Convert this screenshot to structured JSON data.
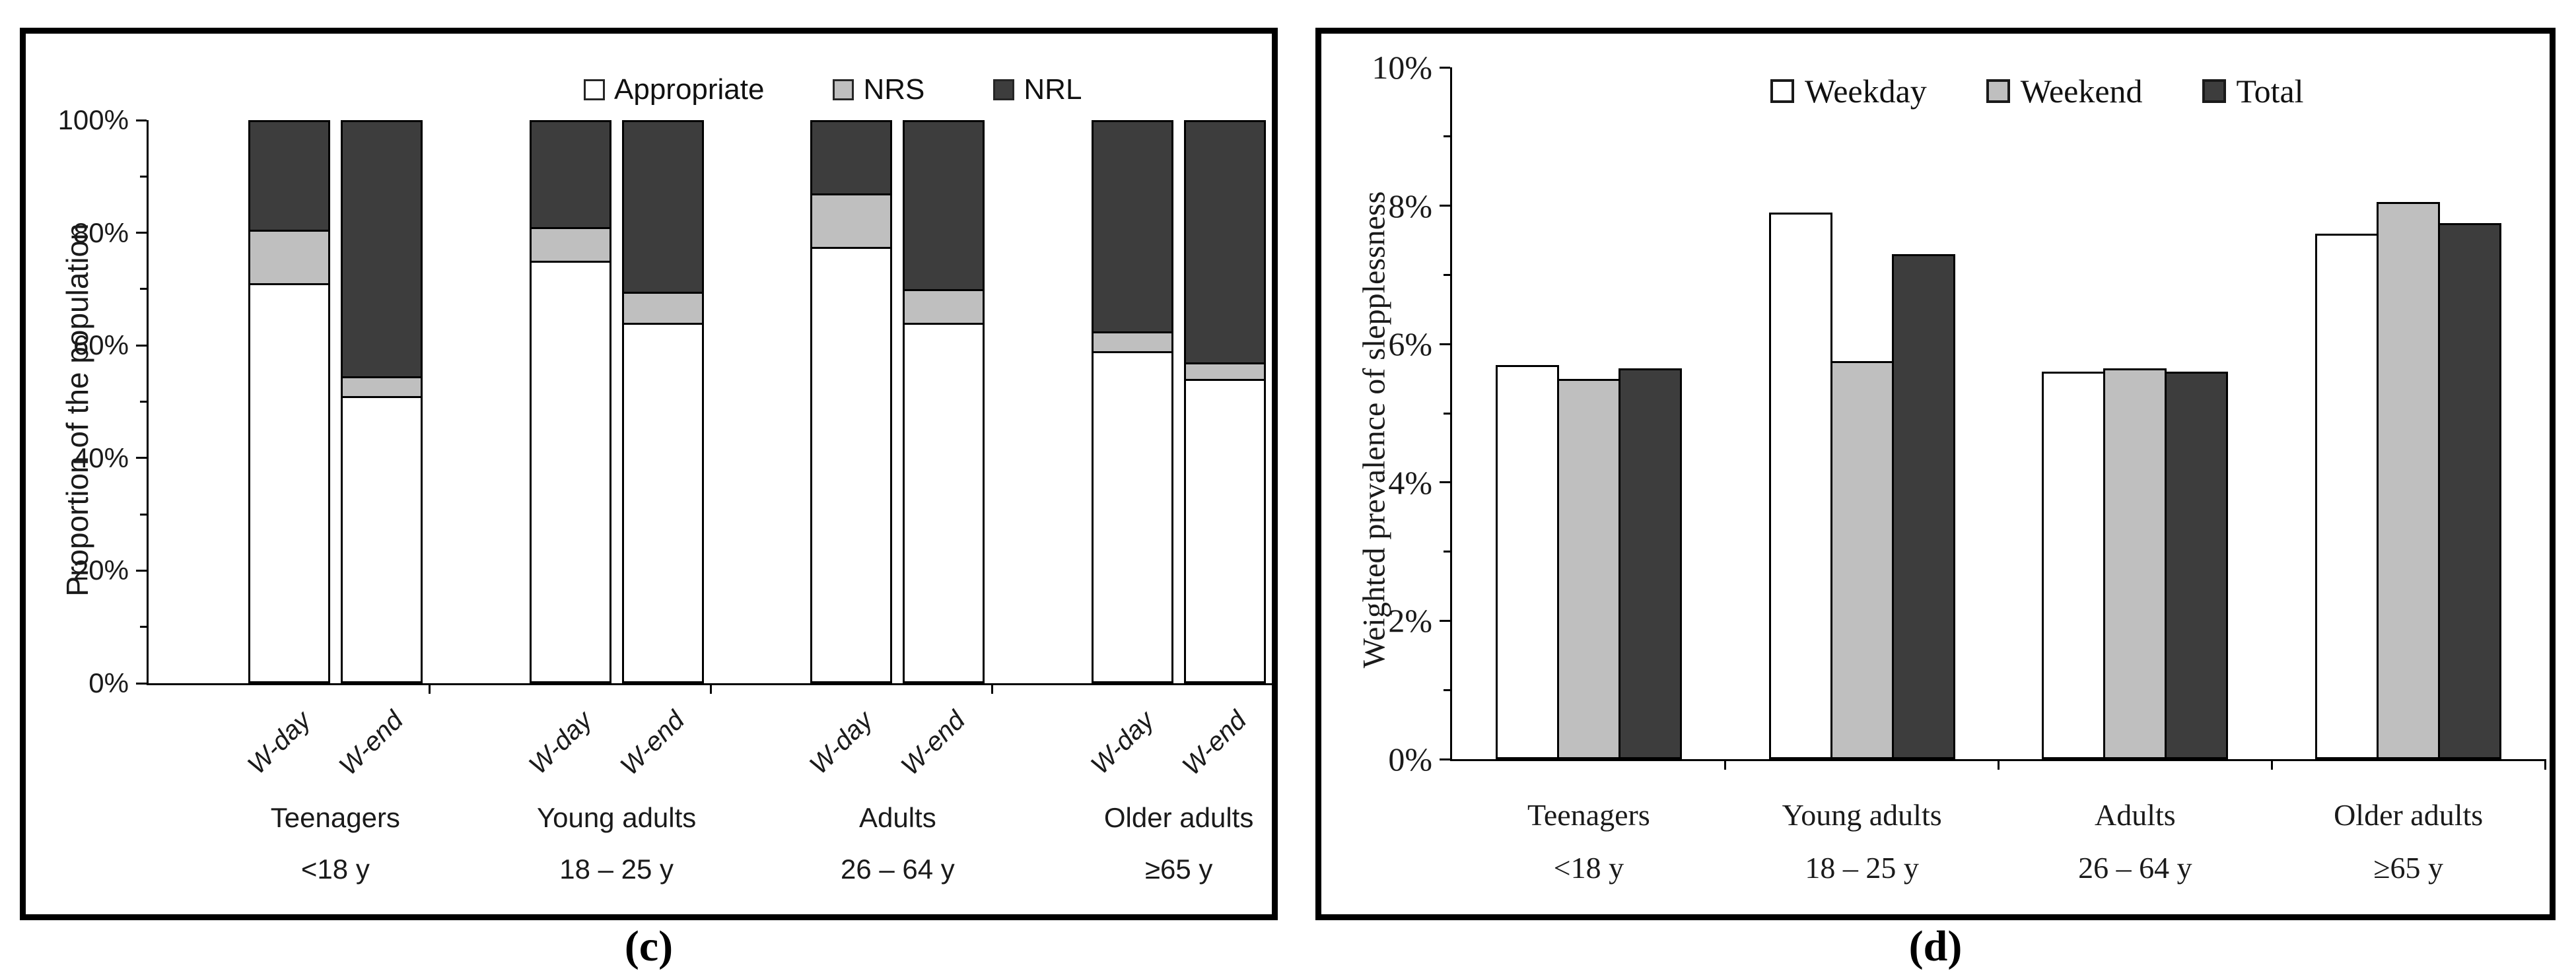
{
  "chart_data": [
    {
      "type": "bar",
      "subtype": "stacked",
      "panel": "c",
      "caption": "(c)",
      "title": "",
      "xlabel": "",
      "ylabel": "Proportion of the population",
      "ylim": [
        0,
        100
      ],
      "y_axis": {
        "max": 100,
        "major_step": 20,
        "minor_step": 10,
        "unit": "%",
        "labels": [
          "0%",
          "20%",
          "40%",
          "60%",
          "80%",
          "100%"
        ]
      },
      "legend_position": "top",
      "grid": "off",
      "series": [
        {
          "name": "Appropriate",
          "fill": "#ffffff"
        },
        {
          "name": "NRS",
          "fill": "#bfbfbf"
        },
        {
          "name": "NRL",
          "fill": "#3d3d3d"
        }
      ],
      "sub_category_labels": [
        "W-day",
        "W-end"
      ],
      "groups": [
        {
          "label": "Teenagers",
          "age_range": "<18 y",
          "bars": [
            {
              "label": "W-day",
              "segments": [
                71,
                9.5,
                19.5
              ]
            },
            {
              "label": "W-end",
              "segments": [
                51,
                3.5,
                45.5
              ]
            }
          ]
        },
        {
          "label": "Young adults",
          "age_range": "18 – 25 y",
          "bars": [
            {
              "label": "W-day",
              "segments": [
                75,
                6,
                19
              ]
            },
            {
              "label": "W-end",
              "segments": [
                64,
                5.5,
                30.5
              ]
            }
          ]
        },
        {
          "label": "Adults",
          "age_range": "26 – 64 y",
          "bars": [
            {
              "label": "W-day",
              "segments": [
                77.5,
                9.5,
                13
              ]
            },
            {
              "label": "W-end",
              "segments": [
                64,
                6,
                30
              ]
            }
          ]
        },
        {
          "label": "Older adults",
          "age_range": "≥65 y",
          "bars": [
            {
              "label": "W-day",
              "segments": [
                59,
                3.5,
                37.5
              ]
            },
            {
              "label": "W-end",
              "segments": [
                54,
                3,
                43
              ]
            }
          ]
        }
      ]
    },
    {
      "type": "bar",
      "subtype": "grouped",
      "panel": "d",
      "caption": "(d)",
      "title": "",
      "xlabel": "",
      "ylabel": "Weighted prevalence of slepplessness",
      "ylim": [
        0,
        10
      ],
      "y_axis": {
        "max": 10,
        "major_step": 2,
        "minor_step": 1,
        "unit": "%",
        "labels": [
          "0%",
          "2%",
          "4%",
          "6%",
          "8%",
          "10%"
        ]
      },
      "legend_position": "top",
      "grid": "off",
      "series": [
        {
          "name": "Weekday",
          "fill": "#ffffff"
        },
        {
          "name": "Weekend",
          "fill": "#bfbfbf"
        },
        {
          "name": "Total",
          "fill": "#3d3d3d"
        }
      ],
      "groups": [
        {
          "label": "Teenagers",
          "age_range": "<18 y",
          "values": [
            5.7,
            5.5,
            5.65
          ]
        },
        {
          "label": "Young adults",
          "age_range": "18 – 25 y",
          "values": [
            7.9,
            5.75,
            7.3
          ]
        },
        {
          "label": "Adults",
          "age_range": "26 – 64 y",
          "values": [
            5.6,
            5.65,
            5.6
          ]
        },
        {
          "label": "Older adults",
          "age_range": "≥65 y",
          "values": [
            7.6,
            8.05,
            7.75
          ]
        }
      ]
    }
  ]
}
